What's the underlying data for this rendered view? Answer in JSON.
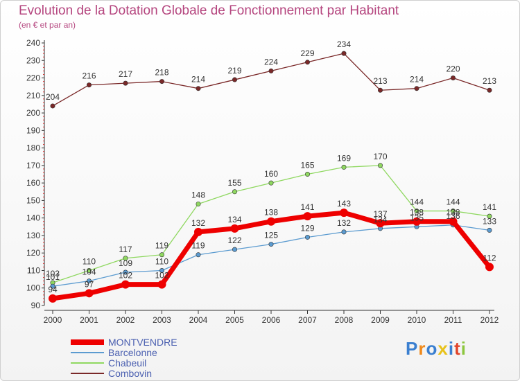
{
  "header": {
    "title": "Evolution de la Dotation Globale de Fonctionnement par Habitant",
    "subtitle": "(en € et par an)"
  },
  "logo": {
    "text": "Proxiti"
  },
  "chart_data": {
    "type": "line",
    "title": "Evolution de la Dotation Globale de Fonctionnement par Habitant",
    "subtitle": "(en € et par an)",
    "xlabel": "",
    "ylabel": "",
    "x": [
      "2000",
      "2001",
      "2002",
      "2003",
      "2004",
      "2005",
      "2006",
      "2007",
      "2008",
      "2009",
      "2010",
      "2011",
      "2012"
    ],
    "ylim": [
      90,
      240
    ],
    "yticks": [
      "90",
      "100",
      "110",
      "120",
      "130",
      "140",
      "150",
      "160",
      "170",
      "180",
      "190",
      "200",
      "210",
      "220",
      "230",
      "240"
    ],
    "grid": false,
    "legend": "bottom-left",
    "series": [
      {
        "name": "MONTVENDRE",
        "color": "#ee0000",
        "values": [
          94,
          97,
          102,
          102,
          132,
          134,
          138,
          141,
          143,
          137,
          138,
          138,
          112
        ]
      },
      {
        "name": "Barcelonne",
        "color": "#5b9bd0",
        "values": [
          101,
          104,
          109,
          110,
          119,
          122,
          125,
          129,
          132,
          134,
          135,
          136,
          133
        ]
      },
      {
        "name": "Chabeuil",
        "color": "#8fd860",
        "values": [
          103,
          110,
          117,
          119,
          148,
          155,
          160,
          165,
          169,
          170,
          144,
          144,
          141
        ]
      },
      {
        "name": "Combovin",
        "color": "#7a2828",
        "values": [
          204,
          216,
          217,
          218,
          214,
          219,
          224,
          229,
          234,
          213,
          214,
          220,
          213
        ]
      }
    ]
  }
}
